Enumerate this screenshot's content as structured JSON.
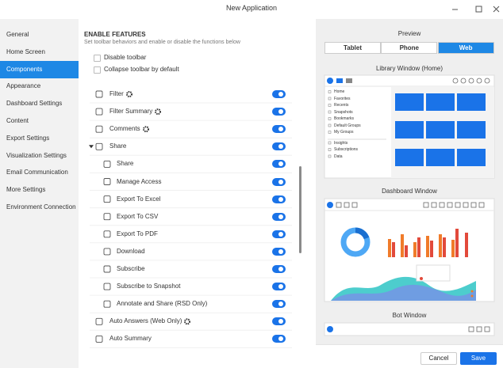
{
  "window": {
    "title": "New Application"
  },
  "sidebar": {
    "items": [
      "General",
      "Home Screen",
      "Components",
      "Appearance",
      "Dashboard Settings",
      "Content",
      "Export Settings",
      "Visualization Settings",
      "Email Communication",
      "More Settings",
      "Environment Connection"
    ],
    "selected": 2
  },
  "features": {
    "heading": "ENABLE FEATURES",
    "description": "Set toolbar behaviors and enable or disable the functions below",
    "checkboxes": [
      "Disable toolbar",
      "Collapse toolbar by default"
    ],
    "toggles": [
      {
        "label": "Filter",
        "level": 1,
        "gear": true,
        "on": true
      },
      {
        "label": "Filter Summary",
        "level": 1,
        "gear": true,
        "on": true
      },
      {
        "label": "Comments",
        "level": 1,
        "gear": true,
        "on": true
      },
      {
        "label": "Share",
        "level": 1,
        "expanded": true,
        "on": true
      },
      {
        "label": "Share",
        "level": 2,
        "on": true
      },
      {
        "label": "Manage Access",
        "level": 2,
        "on": true
      },
      {
        "label": "Export To Excel",
        "level": 2,
        "on": true
      },
      {
        "label": "Export To CSV",
        "level": 2,
        "on": true
      },
      {
        "label": "Export To PDF",
        "level": 2,
        "on": true
      },
      {
        "label": "Download",
        "level": 2,
        "on": true
      },
      {
        "label": "Subscribe",
        "level": 2,
        "on": true
      },
      {
        "label": "Subscribe to Snapshot",
        "level": 2,
        "on": true
      },
      {
        "label": "Annotate and Share (RSD Only)",
        "level": 2,
        "on": true
      },
      {
        "label": "Auto Answers (Web Only)",
        "level": 1,
        "gear": true,
        "on": true
      },
      {
        "label": "Auto Summary",
        "level": 1,
        "on": true
      }
    ]
  },
  "preview": {
    "title": "Preview",
    "tabs": [
      "Tablet",
      "Phone",
      "Web"
    ],
    "active_tab": 2,
    "library": {
      "title": "Library Window (Home)",
      "nav": [
        "Home",
        "Favorites",
        "Recents",
        "Snapshots",
        "Bookmarks",
        "Default Groups",
        "My Groups",
        "Insights",
        "Subscriptions",
        "Data"
      ]
    },
    "dashboard": {
      "title": "Dashboard Window"
    },
    "bot": {
      "title": "Bot Window"
    }
  },
  "buttons": {
    "cancel": "Cancel",
    "save": "Save"
  }
}
